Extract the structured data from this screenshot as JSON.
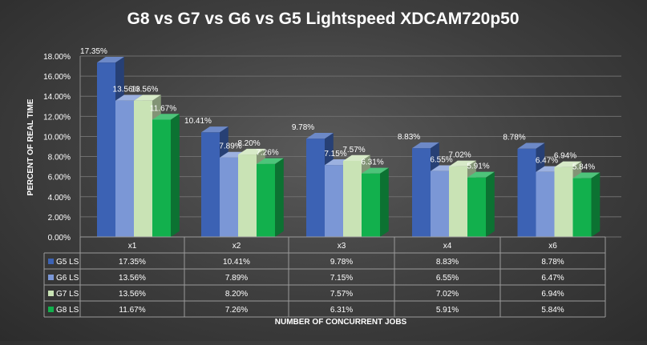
{
  "chart_data": {
    "type": "bar",
    "title": "G8 vs G7 vs G6 vs G5 Lightspeed XDCAM720p50",
    "xlabel": "NUMBER OF CONCURRENT JOBS",
    "ylabel": "PERCENT OF REAL TIME",
    "ylim": [
      0,
      18
    ],
    "yticks": [
      "0.00%",
      "2.00%",
      "4.00%",
      "6.00%",
      "8.00%",
      "10.00%",
      "12.00%",
      "14.00%",
      "16.00%",
      "18.00%"
    ],
    "grid": true,
    "categories": [
      "x1",
      "x2",
      "x3",
      "x4",
      "x6"
    ],
    "series": [
      {
        "name": "G5 LS",
        "color": "#3c62b4",
        "values": [
          17.35,
          10.41,
          9.78,
          8.83,
          8.78
        ],
        "labels": [
          "17.35%",
          "10.41%",
          "9.78%",
          "8.83%",
          "8.78%"
        ]
      },
      {
        "name": "G6 LS",
        "color": "#7b97d6",
        "values": [
          13.56,
          7.89,
          7.15,
          6.55,
          6.47
        ],
        "labels": [
          "13.56%",
          "7.89%",
          "7.15%",
          "6.55%",
          "6.47%"
        ]
      },
      {
        "name": "G7 LS",
        "color": "#c9e3b5",
        "values": [
          13.56,
          8.2,
          7.57,
          7.02,
          6.94
        ],
        "labels": [
          "13.56%",
          "8.20%",
          "7.57%",
          "7.02%",
          "6.94%"
        ]
      },
      {
        "name": "G8 LS",
        "color": "#12b04d",
        "values": [
          11.67,
          7.26,
          6.31,
          5.91,
          5.84
        ],
        "labels": [
          "11.67%",
          "7.26%",
          "6.31%",
          "5.91%",
          "5.84%"
        ]
      }
    ],
    "data_table": true
  }
}
